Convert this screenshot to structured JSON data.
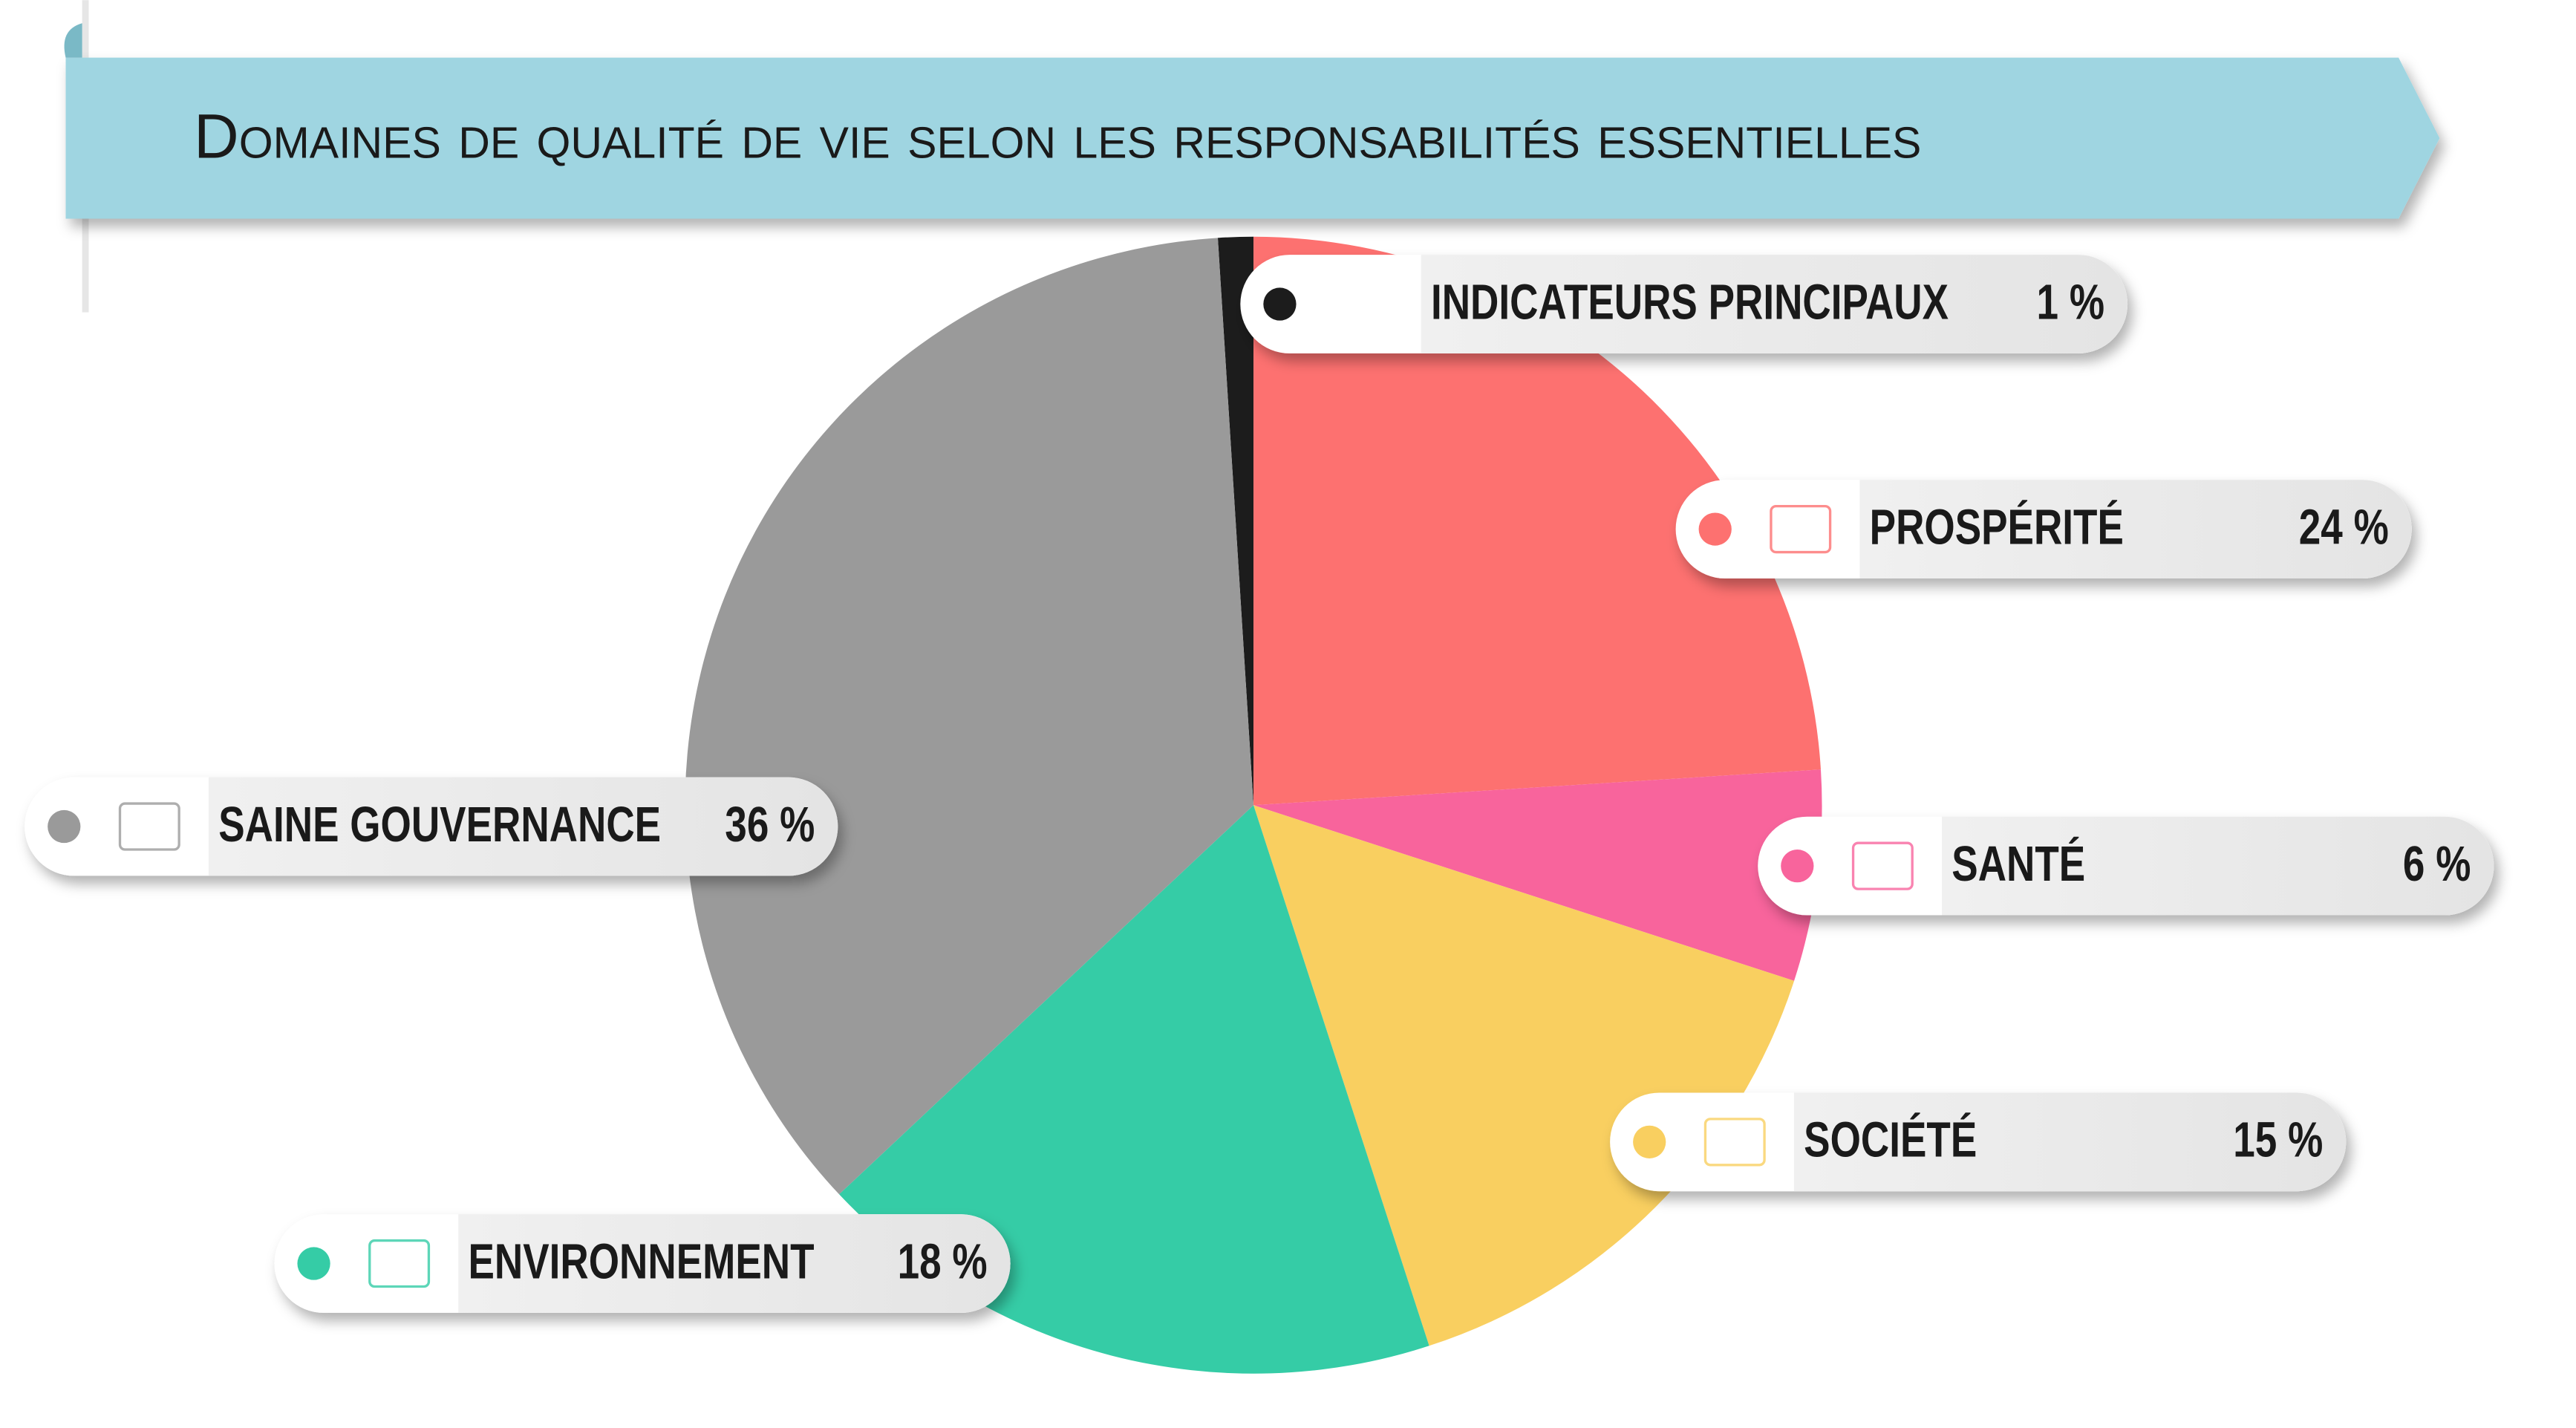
{
  "chart_data": {
    "type": "pie",
    "title": "Domaines de qualité de vie selon les responsabilités essentielles",
    "categories": [
      "INDICATEURS PRINCIPAUX",
      "PROSPÉRITÉ",
      "SANTÉ",
      "SOCIÉTÉ",
      "ENVIRONNEMENT",
      "SAINE GOUVERNANCE"
    ],
    "values": [
      1,
      24,
      6,
      15,
      18,
      36
    ],
    "value_labels": [
      "1 %",
      "24 %",
      "6 %",
      "15 %",
      "18 %",
      "36 %"
    ],
    "colors": [
      "#1c1c1c",
      "#fd7170",
      "#f8649c",
      "#f9cf60",
      "#35cca6",
      "#9a9a9a"
    ]
  }
}
